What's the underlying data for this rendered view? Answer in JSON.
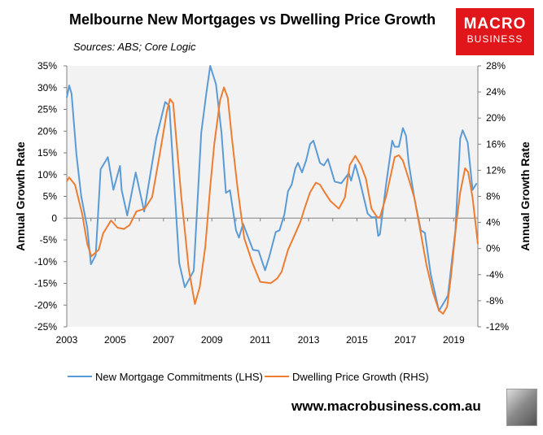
{
  "header": {
    "title": "Melbourne New Mortgages vs Dwelling Price Growth",
    "sources": "Sources: ABS; Core Logic"
  },
  "logo": {
    "line1": "MACRO",
    "line2": "BUSINESS",
    "color": "#e0161b"
  },
  "footer": {
    "url": "www.macrobusiness.com.au"
  },
  "chart_data": {
    "type": "line",
    "title": "Melbourne New Mortgages vs Dwelling Price Growth",
    "ylabel": "Annual Growth Rate",
    "y2label": "Annual Growth Rate",
    "xlim": [
      2003,
      2020
    ],
    "ylim": [
      -25,
      35
    ],
    "y2lim": [
      -12,
      28
    ],
    "xticks": [
      "2003",
      "2005",
      "2007",
      "2009",
      "2011",
      "2013",
      "2015",
      "2017",
      "2019"
    ],
    "yticks": [
      "35%",
      "30%",
      "25%",
      "20%",
      "15%",
      "10%",
      "5%",
      "0",
      "-5%",
      "-10%",
      "-15%",
      "-20%",
      "-25%"
    ],
    "y2ticks": [
      "28%",
      "24%",
      "20%",
      "16%",
      "12%",
      "8%",
      "4%",
      "0%",
      "-4%",
      "-8%",
      "-12%"
    ],
    "grid": false,
    "legend": "bottom",
    "series": [
      {
        "name": "New Mortgage Commitments (LHS)",
        "axis": "left",
        "color": "#5b9bd5",
        "x": [
          2003.0,
          2003.1,
          2003.2,
          2003.4,
          2003.6,
          2003.85,
          2004.0,
          2004.2,
          2004.4,
          2004.7,
          2004.93,
          2005.2,
          2005.27,
          2005.5,
          2005.85,
          2006.2,
          2006.7,
          2007.07,
          2007.24,
          2007.65,
          2007.88,
          2008.25,
          2008.56,
          2008.76,
          2008.93,
          2009.17,
          2009.4,
          2009.58,
          2009.75,
          2010.0,
          2010.12,
          2010.29,
          2010.7,
          2010.93,
          2011.2,
          2011.37,
          2011.64,
          2011.8,
          2012.0,
          2012.15,
          2012.3,
          2012.45,
          2012.56,
          2012.73,
          2012.9,
          2013.06,
          2013.2,
          2013.47,
          2013.63,
          2013.8,
          2014.08,
          2014.35,
          2014.66,
          2014.76,
          2014.93,
          2015.1,
          2015.44,
          2015.6,
          2015.78,
          2015.88,
          2015.95,
          2016.19,
          2016.46,
          2016.56,
          2016.73,
          2016.9,
          2017.03,
          2017.14,
          2017.37,
          2017.64,
          2017.81,
          2018.05,
          2018.39,
          2018.6,
          2018.76,
          2019.07,
          2019.27,
          2019.37,
          2019.58,
          2019.78,
          2019.95
        ],
        "y": [
          27.7,
          30.5,
          28.6,
          14.6,
          5,
          -2.2,
          -10.6,
          -8.5,
          11.2,
          14,
          6.5,
          12,
          6.5,
          0.6,
          10.5,
          1.5,
          18.3,
          26.7,
          25.8,
          -10.3,
          -15.9,
          -12.1,
          19.6,
          28.2,
          35,
          30.8,
          19.6,
          5.8,
          6.4,
          -2.8,
          -4.5,
          -1.3,
          -7.3,
          -7.5,
          -12,
          -9,
          -3.2,
          -2.8,
          0.9,
          6.2,
          7.7,
          11.4,
          12.7,
          10.5,
          13.3,
          17,
          17.8,
          12.7,
          12.1,
          13.6,
          8.4,
          8,
          10.3,
          8.6,
          12.3,
          9,
          1.1,
          0.2,
          0.2,
          -4.1,
          -3.7,
          7.1,
          17.8,
          16.4,
          16.4,
          20.7,
          18.9,
          12.7,
          4.7,
          -2.8,
          -3.4,
          -12.9,
          -21.3,
          -19.4,
          -17.8,
          -2.8,
          18.3,
          20.2,
          17.4,
          6.5,
          8
        ]
      },
      {
        "name": "Dwelling Price Growth (RHS)",
        "axis": "right",
        "color": "#ed7d31",
        "x": [
          2003.0,
          2003.1,
          2003.34,
          2003.64,
          2003.85,
          2004.02,
          2004.32,
          2004.5,
          2004.83,
          2005.1,
          2005.37,
          2005.6,
          2005.88,
          2006.22,
          2006.53,
          2006.86,
          2007.14,
          2007.27,
          2007.4,
          2007.74,
          2007.88,
          2008.04,
          2008.3,
          2008.5,
          2008.73,
          2008.93,
          2009.1,
          2009.34,
          2009.5,
          2009.66,
          2009.83,
          2010.06,
          2010.34,
          2010.68,
          2011.0,
          2011.44,
          2011.7,
          2011.88,
          2012.15,
          2012.45,
          2012.66,
          2012.83,
          2013.06,
          2013.3,
          2013.47,
          2013.7,
          2013.9,
          2014.25,
          2014.5,
          2014.7,
          2014.93,
          2015.16,
          2015.37,
          2015.6,
          2015.84,
          2015.95,
          2016.22,
          2016.56,
          2016.73,
          2016.9,
          2017.14,
          2017.37,
          2017.58,
          2017.88,
          2018.15,
          2018.39,
          2018.56,
          2018.73,
          2018.9,
          2019.1,
          2019.27,
          2019.47,
          2019.6,
          2019.78,
          2020.0
        ],
        "y": [
          10.3,
          10.9,
          9.8,
          5.3,
          0.7,
          -1.2,
          -0.2,
          2.3,
          4.3,
          3.2,
          3,
          3.6,
          5.7,
          6.1,
          7.9,
          14.8,
          21,
          22.9,
          22.3,
          7.8,
          2.8,
          -3,
          -8.5,
          -5.9,
          0.3,
          9.4,
          16,
          22.7,
          24.7,
          23.1,
          16.9,
          9.4,
          1.6,
          -2.2,
          -5.1,
          -5.3,
          -4.6,
          -3.6,
          -0.2,
          2.3,
          4.1,
          6.1,
          8.6,
          10.1,
          9.8,
          8.4,
          7.3,
          6.1,
          7.8,
          12.8,
          14.2,
          12.8,
          10.7,
          6.1,
          4.8,
          4.8,
          8.2,
          14,
          14.3,
          13.5,
          10.7,
          7.8,
          3.6,
          -2.6,
          -6.8,
          -9.5,
          -10,
          -8.9,
          -3.9,
          3.6,
          8.6,
          12.3,
          11.7,
          7.8,
          0.7
        ]
      }
    ]
  }
}
